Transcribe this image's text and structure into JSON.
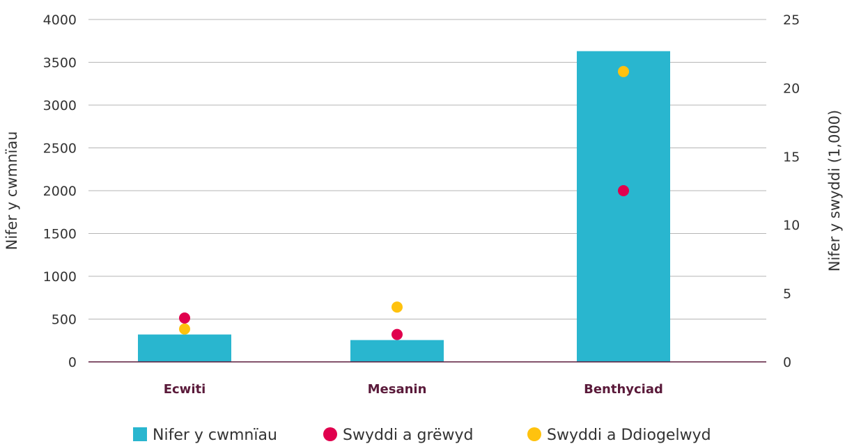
{
  "chart_data": {
    "type": "bar",
    "categories": [
      "Ecwiti",
      "Mesanin",
      "Benthyciad"
    ],
    "series": [
      {
        "name": "Nifer y cwmnïau",
        "type": "bar",
        "axis": "left",
        "values": [
          320,
          255,
          3630
        ],
        "color": "#29b6cf"
      },
      {
        "name": "Swyddi a grëwyd",
        "type": "scatter",
        "axis": "right",
        "values": [
          3.2,
          2.0,
          12.5
        ],
        "color": "#e0004d"
      },
      {
        "name": "Swyddi a Ddiogelwyd",
        "type": "scatter",
        "axis": "right",
        "values": [
          2.4,
          4.0,
          21.2
        ],
        "color": "#ffc20e"
      }
    ],
    "ylabel": "Nifer y cwmnïau",
    "ylim": [
      0,
      4000
    ],
    "yticks": [
      "0",
      "500",
      "1000",
      "1500",
      "2000",
      "2500",
      "3000",
      "3500",
      "4000"
    ],
    "ylabel_right": "Nifer y swyddi (1,000)",
    "ylim_right": [
      0,
      25
    ],
    "yticks_right": [
      "0",
      "5",
      "10",
      "15",
      "20",
      "25"
    ],
    "grid": true,
    "legend_position": "bottom-center",
    "colors": {
      "grid": "#b5b5b5",
      "baseline": "#5a1a3a",
      "category_text": "#5a1a3a"
    }
  }
}
